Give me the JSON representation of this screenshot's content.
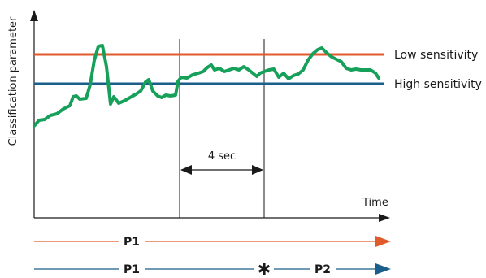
{
  "axes": {
    "y_label": "Classification parameter",
    "x_label": "Time"
  },
  "thresholds": {
    "low": {
      "label": "Low sensitivity",
      "color": "#e05a2b"
    },
    "high": {
      "label": "High sensitivity",
      "color": "#1a5f8c"
    }
  },
  "signal": {
    "color": "#16a05a"
  },
  "interval": {
    "label": "4 sec"
  },
  "program_lines": {
    "line1": {
      "start_label": "P1",
      "color": "#e05a2b"
    },
    "line2": {
      "start_label": "P1",
      "switch_marker": "✱",
      "end_label": "P2",
      "color": "#1a5f8c"
    }
  }
}
